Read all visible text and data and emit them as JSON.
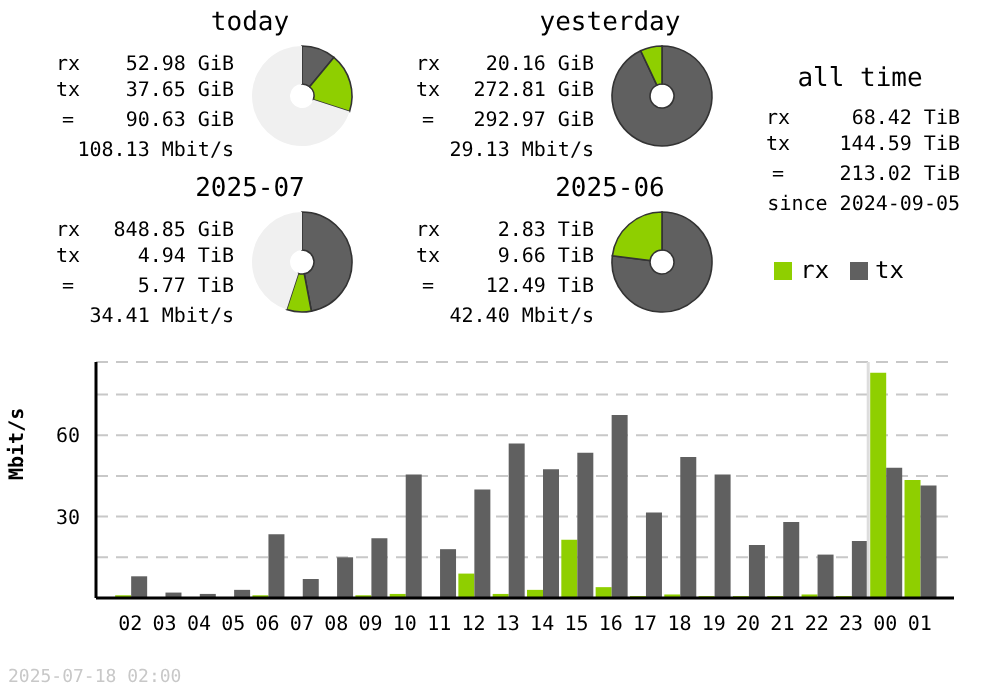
{
  "chart_data": [
    {
      "type": "donut",
      "title": "today",
      "categories": [
        null,
        null,
        null
      ],
      "values": [
        11,
        19,
        70
      ],
      "colors": [
        "#606060",
        "#8fcf00",
        "#f0f0f0"
      ],
      "annotations": [
        "rx 52.98 GiB",
        "tx 37.65 GiB",
        "= 90.63 GiB",
        "108.13 Mbit/s"
      ]
    },
    {
      "type": "donut",
      "title": "yesterday",
      "categories": [
        null,
        null
      ],
      "values": [
        93,
        7
      ],
      "colors": [
        "#606060",
        "#8fcf00"
      ],
      "annotations": [
        "rx 20.16 GiB",
        "tx 272.81 GiB",
        "= 292.97 GiB",
        "29.13 Mbit/s"
      ]
    },
    {
      "type": "other",
      "title": "all time",
      "annotations": [
        "rx 68.42 TiB",
        "tx 144.59 TiB",
        "= 213.02 TiB",
        "since 2024-09-05"
      ]
    },
    {
      "type": "donut",
      "title": "2025-07",
      "categories": [
        null,
        null,
        null
      ],
      "values": [
        47,
        8,
        45
      ],
      "colors": [
        "#606060",
        "#8fcf00",
        "#f0f0f0"
      ],
      "annotations": [
        "rx 848.85 GiB",
        "tx 4.94 TiB",
        "= 5.77 TiB",
        "34.41 Mbit/s"
      ]
    },
    {
      "type": "donut",
      "title": "2025-06",
      "categories": [
        null,
        null
      ],
      "values": [
        77,
        23
      ],
      "colors": [
        "#606060",
        "#8fcf00"
      ],
      "annotations": [
        "rx 2.83 TiB",
        "tx 9.66 TiB",
        "= 12.49 TiB",
        "42.40 Mbit/s"
      ]
    },
    {
      "type": "bar",
      "ylabel": "Mbit/s",
      "categories": [
        "02",
        "03",
        "04",
        "05",
        "06",
        "07",
        "08",
        "09",
        "10",
        "11",
        "12",
        "13",
        "14",
        "15",
        "16",
        "17",
        "18",
        "19",
        "20",
        "21",
        "22",
        "23",
        "00",
        "01"
      ],
      "series": [
        {
          "name": "rx",
          "color": "#8fcf00",
          "values": [
            1,
            0,
            0,
            0,
            1,
            0,
            0,
            1,
            1.5,
            0,
            9,
            1.5,
            3,
            21.5,
            4,
            0.7,
            1.3,
            0.7,
            0.7,
            0.7,
            1.3,
            0.7,
            83,
            43.5
          ]
        },
        {
          "name": "tx",
          "color": "#606060",
          "values": [
            8,
            2,
            1.5,
            3,
            23.5,
            7,
            15,
            22,
            45.5,
            18,
            40,
            57,
            47.5,
            53.5,
            67.5,
            31.5,
            52,
            45.5,
            19.5,
            28,
            16,
            21,
            48,
            41.5
          ]
        }
      ],
      "ylim": [
        0,
        87
      ],
      "yticks": [
        {
          "value": 15,
          "label": null
        },
        30,
        {
          "value": 45,
          "label": null
        },
        60,
        {
          "value": 75,
          "label": null
        }
      ],
      "grid": "y",
      "legend": "top right",
      "ref_lines": [
        {
          "axis": "x",
          "value": "00",
          "color": "#dddddd"
        }
      ],
      "annotations": [
        "2025-07-18 02:00"
      ]
    }
  ]
}
